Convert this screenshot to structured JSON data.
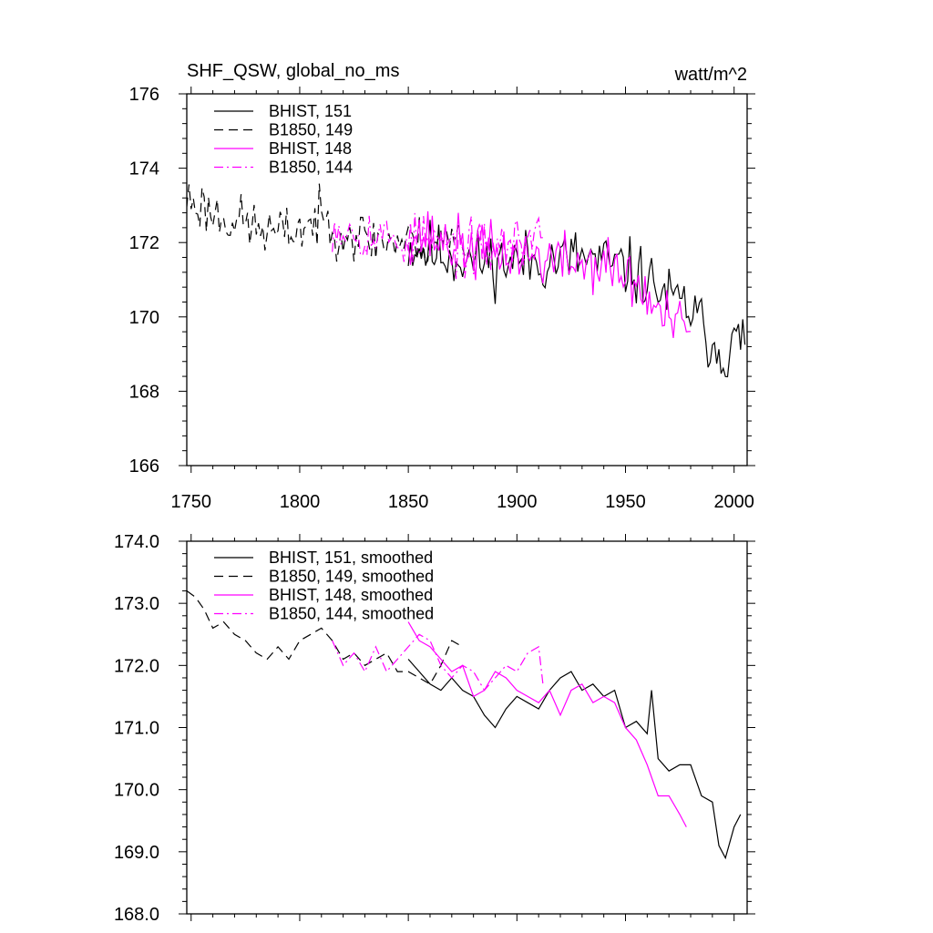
{
  "chart_data": [
    {
      "type": "line",
      "title": "SHF_QSW, global_no_ms",
      "units_label": "watt/m^2",
      "xlabel": "",
      "ylabel": "",
      "xlim": [
        1748,
        2006
      ],
      "ylim": [
        166,
        176
      ],
      "x_ticks": [
        1750,
        1800,
        1850,
        1900,
        1950,
        2000
      ],
      "x_tick_labels": [
        "1750",
        "1800",
        "1850",
        "1900",
        "1950",
        "2000"
      ],
      "y_ticks": [
        166,
        168,
        170,
        172,
        174,
        176
      ],
      "y_tick_labels": [
        "166",
        "168",
        "170",
        "172",
        "174",
        "176"
      ],
      "grid": false,
      "legend_position": "top-left",
      "series": [
        {
          "name": "BHIST, 151",
          "color": "#000000",
          "dash": "solid",
          "x_start": 1850,
          "x_end": 2005,
          "mean_line": [
            [
              1850,
              171.9
            ],
            [
              1880,
              171.5
            ],
            [
              1910,
              171.5
            ],
            [
              1930,
              171.6
            ],
            [
              1950,
              171.3
            ],
            [
              1960,
              171.0
            ],
            [
              1970,
              170.5
            ],
            [
              1980,
              170.2
            ],
            [
              1990,
              169.3
            ],
            [
              1995,
              169.0
            ],
            [
              2005,
              169.5
            ]
          ],
          "noise": 0.7,
          "seed": 11
        },
        {
          "name": "B1850, 149",
          "color": "#000000",
          "dash": "dashed",
          "x_start": 1748,
          "x_end": 1876,
          "mean_line": [
            [
              1748,
              173.2
            ],
            [
              1760,
              172.8
            ],
            [
              1790,
              172.2
            ],
            [
              1810,
              172.6
            ],
            [
              1830,
              172.1
            ],
            [
              1850,
              172.0
            ],
            [
              1876,
              172.1
            ]
          ],
          "noise": 0.6,
          "seed": 23
        },
        {
          "name": "BHIST, 148",
          "color": "#ff00ff",
          "dash": "solid",
          "x_start": 1850,
          "x_end": 1980,
          "mean_line": [
            [
              1850,
              172.3
            ],
            [
              1880,
              171.8
            ],
            [
              1900,
              171.7
            ],
            [
              1920,
              171.5
            ],
            [
              1940,
              171.4
            ],
            [
              1955,
              170.9
            ],
            [
              1965,
              170.1
            ],
            [
              1980,
              169.5
            ]
          ],
          "noise": 0.65,
          "seed": 37
        },
        {
          "name": "B1850, 144",
          "color": "#ff00ff",
          "dash": "dashdot",
          "x_start": 1815,
          "x_end": 1912,
          "mean_line": [
            [
              1815,
              172.5
            ],
            [
              1840,
              172.1
            ],
            [
              1860,
              172.0
            ],
            [
              1880,
              171.8
            ],
            [
              1900,
              172.0
            ],
            [
              1912,
              172.3
            ]
          ],
          "noise": 0.6,
          "seed": 53
        }
      ]
    },
    {
      "type": "line",
      "title": "",
      "xlabel": "",
      "ylabel": "",
      "xlim": [
        1748,
        2006
      ],
      "ylim": [
        168.0,
        174.0
      ],
      "x_ticks": [
        1750,
        1800,
        1850,
        1900,
        1950,
        2000
      ],
      "y_ticks": [
        168.0,
        169.0,
        170.0,
        171.0,
        172.0,
        173.0,
        174.0
      ],
      "y_tick_labels": [
        "168.0",
        "169.0",
        "170.0",
        "171.0",
        "172.0",
        "173.0",
        "174.0"
      ],
      "grid": false,
      "legend_position": "top-left",
      "series": [
        {
          "name": "BHIST, 151, smoothed",
          "color": "#000000",
          "dash": "solid",
          "x": [
            1850,
            1855,
            1860,
            1865,
            1870,
            1875,
            1880,
            1885,
            1890,
            1895,
            1900,
            1905,
            1910,
            1915,
            1920,
            1925,
            1930,
            1935,
            1940,
            1945,
            1950,
            1955,
            1960,
            1962,
            1965,
            1970,
            1975,
            1980,
            1985,
            1990,
            1993,
            1996,
            2000,
            2003
          ],
          "y": [
            172.1,
            171.9,
            171.7,
            171.6,
            171.8,
            171.6,
            171.5,
            171.2,
            171.0,
            171.3,
            171.5,
            171.4,
            171.3,
            171.6,
            171.8,
            171.9,
            171.6,
            171.7,
            171.5,
            171.6,
            171.0,
            171.1,
            170.9,
            171.6,
            170.5,
            170.3,
            170.4,
            170.4,
            169.9,
            169.8,
            169.1,
            168.9,
            169.4,
            169.6
          ]
        },
        {
          "name": "B1850, 149, smoothed",
          "color": "#000000",
          "dash": "dashed",
          "x": [
            1748,
            1752,
            1756,
            1760,
            1765,
            1770,
            1775,
            1780,
            1785,
            1790,
            1795,
            1800,
            1805,
            1810,
            1815,
            1820,
            1825,
            1830,
            1835,
            1840,
            1845,
            1850,
            1855,
            1860,
            1865,
            1870,
            1875
          ],
          "y": [
            173.2,
            173.1,
            172.9,
            172.6,
            172.7,
            172.5,
            172.4,
            172.2,
            172.1,
            172.3,
            172.1,
            172.4,
            172.5,
            172.6,
            172.4,
            172.1,
            172.2,
            172.0,
            172.1,
            172.2,
            171.9,
            171.9,
            171.8,
            171.7,
            172.0,
            172.4,
            172.3
          ]
        },
        {
          "name": "BHIST, 148, smoothed",
          "color": "#ff00ff",
          "dash": "solid",
          "x": [
            1850,
            1855,
            1860,
            1865,
            1870,
            1875,
            1880,
            1885,
            1890,
            1895,
            1900,
            1905,
            1910,
            1915,
            1920,
            1925,
            1930,
            1935,
            1940,
            1945,
            1950,
            1955,
            1960,
            1965,
            1970,
            1975,
            1978
          ],
          "y": [
            172.7,
            172.4,
            172.3,
            172.1,
            171.9,
            172.0,
            171.5,
            171.6,
            171.9,
            171.8,
            171.6,
            171.5,
            171.4,
            171.6,
            171.2,
            171.6,
            171.7,
            171.4,
            171.5,
            171.4,
            171.0,
            170.8,
            170.4,
            169.9,
            169.9,
            169.6,
            169.4
          ]
        },
        {
          "name": "B1850, 144, smoothed",
          "color": "#ff00ff",
          "dash": "dashdot",
          "x": [
            1815,
            1820,
            1825,
            1830,
            1835,
            1840,
            1845,
            1850,
            1855,
            1860,
            1865,
            1870,
            1875,
            1880,
            1885,
            1890,
            1895,
            1900,
            1905,
            1910,
            1912
          ],
          "y": [
            172.4,
            172.0,
            172.2,
            171.9,
            172.3,
            171.9,
            172.1,
            172.3,
            172.5,
            172.4,
            172.0,
            171.8,
            172.0,
            171.9,
            171.6,
            171.8,
            172.0,
            171.9,
            172.2,
            172.3,
            171.7
          ]
        }
      ]
    }
  ]
}
